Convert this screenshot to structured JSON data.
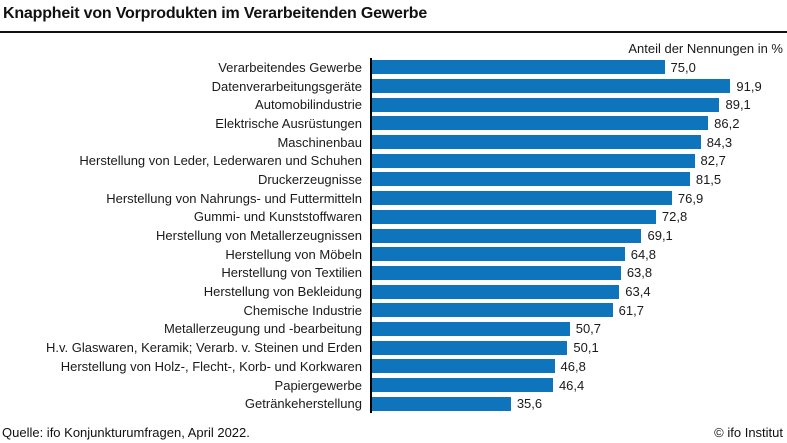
{
  "header": {
    "title": "Knappheit von Vorprodukten im Verarbeitenden Gewerbe",
    "subtitle": "Anteil der Nennungen in %"
  },
  "chart_data": {
    "type": "bar",
    "orientation": "horizontal",
    "title": "Knappheit von Vorprodukten im Verarbeitenden Gewerbe",
    "xlabel": "Anteil der Nennungen in %",
    "xlim": [
      0,
      100
    ],
    "grid": false,
    "legend": false,
    "bar_color": "#0e74bc",
    "categories": [
      "Verarbeitendes Gewerbe",
      "Datenverarbeitungsgeräte",
      "Automobilindustrie",
      "Elektrische Ausrüstungen",
      "Maschinenbau",
      "Herstellung von Leder, Lederwaren und Schuhen",
      "Druckerzeugnisse",
      "Herstellung von Nahrungs- und Futtermitteln",
      "Gummi- und Kunststoffwaren",
      "Herstellung von Metallerzeugnissen",
      "Herstellung von Möbeln",
      "Herstellung von Textilien",
      "Herstellung von Bekleidung",
      "Chemische Industrie",
      "Metallerzeugung und -bearbeitung",
      "H.v. Glaswaren, Keramik; Verarb. v. Steinen und Erden",
      "Herstellung von Holz-, Flecht-, Korb- und Korkwaren",
      "Papiergewerbe",
      "Getränkeherstellung"
    ],
    "values": [
      75.0,
      91.9,
      89.1,
      86.2,
      84.3,
      82.7,
      81.5,
      76.9,
      72.8,
      69.1,
      64.8,
      63.8,
      63.4,
      61.7,
      50.7,
      50.1,
      46.8,
      46.4,
      35.6
    ],
    "value_labels": [
      "75,0",
      "91,9",
      "89,1",
      "86,2",
      "84,3",
      "82,7",
      "81,5",
      "76,9",
      "72,8",
      "69,1",
      "64,8",
      "63,8",
      "63,4",
      "61,7",
      "50,7",
      "50,1",
      "46,8",
      "46,4",
      "35,6"
    ]
  },
  "footer": {
    "source": "Quelle: ifo Konjunkturumfragen, April 2022.",
    "copyright": "© ifo Institut"
  },
  "colors": {
    "bar": "#0e74bc",
    "text": "#1a1a1a",
    "axis": "#000000",
    "title_rule": "#111111"
  }
}
